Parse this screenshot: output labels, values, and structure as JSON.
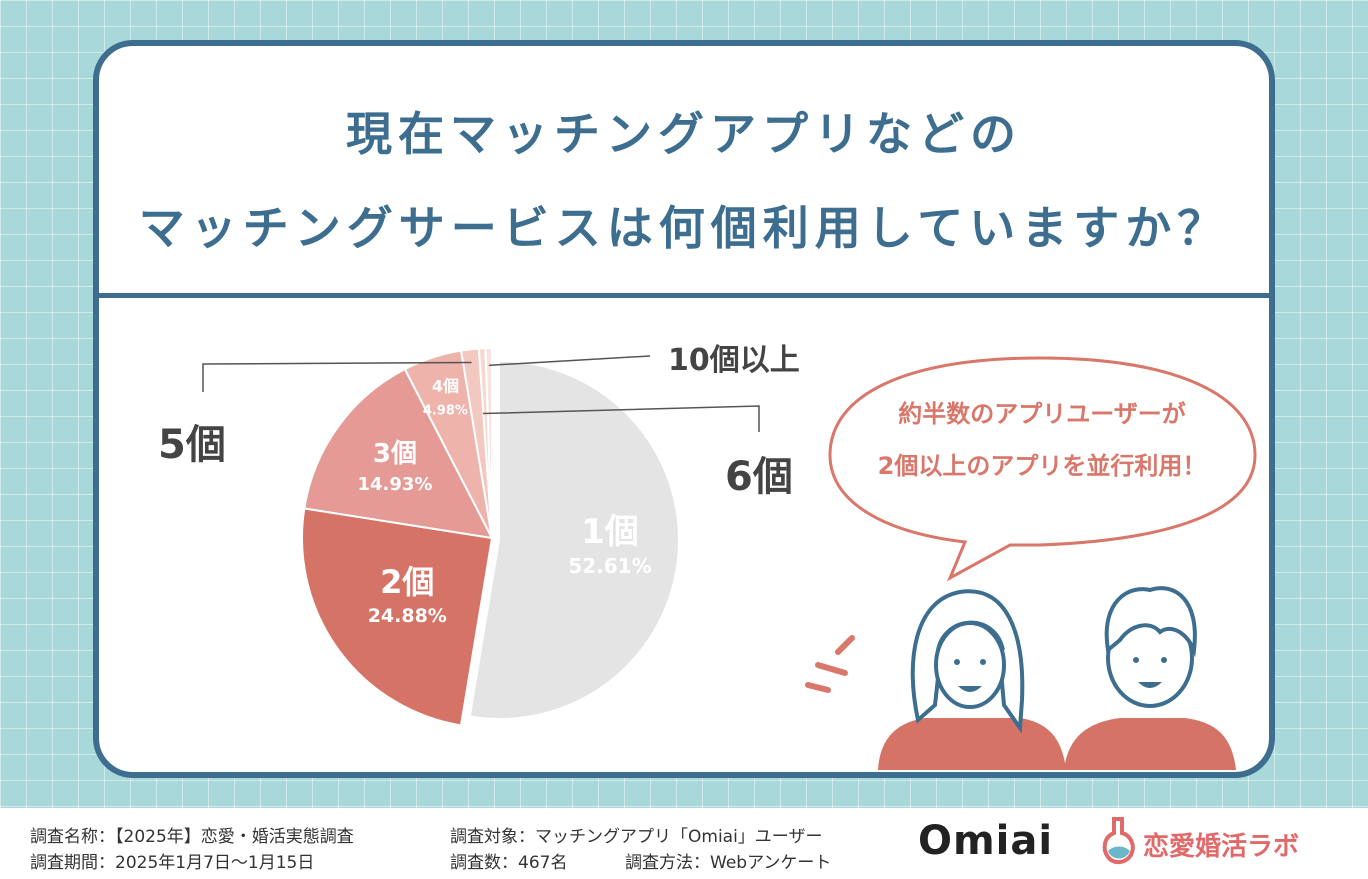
{
  "header": {
    "title_line1": "現在マッチングアプリなどの",
    "title_line2": "マッチングサービスは何個利用していますか？"
  },
  "chart_data": {
    "type": "pie",
    "title": "現在マッチングアプリなどのマッチングサービスは何個利用していますか？",
    "slices": [
      {
        "label": "1個",
        "value": 52.61,
        "value_label": "52.61",
        "color": "#e4e4e4",
        "callout": false
      },
      {
        "label": "2個",
        "value": 24.88,
        "value_label": "24.88",
        "color": "#d57466",
        "callout": false
      },
      {
        "label": "3個",
        "value": 14.93,
        "value_label": "14.93",
        "color": "#e59a95",
        "callout": false
      },
      {
        "label": "4個",
        "value": 4.98,
        "value_label": "4.98",
        "color": "#eeb3ab",
        "callout": false
      },
      {
        "label": "5個",
        "value": 1.5,
        "value_label": "",
        "color": "#f3c8c1",
        "callout": true
      },
      {
        "label": "6個",
        "value": 0.55,
        "value_label": "",
        "color": "#f6d7d2",
        "callout": true
      },
      {
        "label": "10個以上",
        "value": 0.55,
        "value_label": "",
        "color": "#f8e3df",
        "callout": true
      }
    ],
    "percent_suffix": "%",
    "legend": "none"
  },
  "callout_bubble": {
    "line1": "約半数のアプリユーザーが",
    "line2": "2個以上のアプリを並行利用！"
  },
  "footer": {
    "survey_name": "調査名称：【2025年】恋愛・婚活実態調査",
    "survey_target": "調査対象：マッチングアプリ「Omiai」ユーザー",
    "survey_period": "調査期間：2025年1月7日〜1月15日",
    "survey_count": "調査数：467名",
    "survey_method": "調査方法：Webアンケート"
  },
  "logos": {
    "omiai": "Omiai",
    "labo": "恋愛婚活ラボ"
  },
  "colors": {
    "navy": "#3e6e8f",
    "background": "#a9d8da",
    "accent_red": "#d57466",
    "bubble_border": "#d8776a"
  }
}
